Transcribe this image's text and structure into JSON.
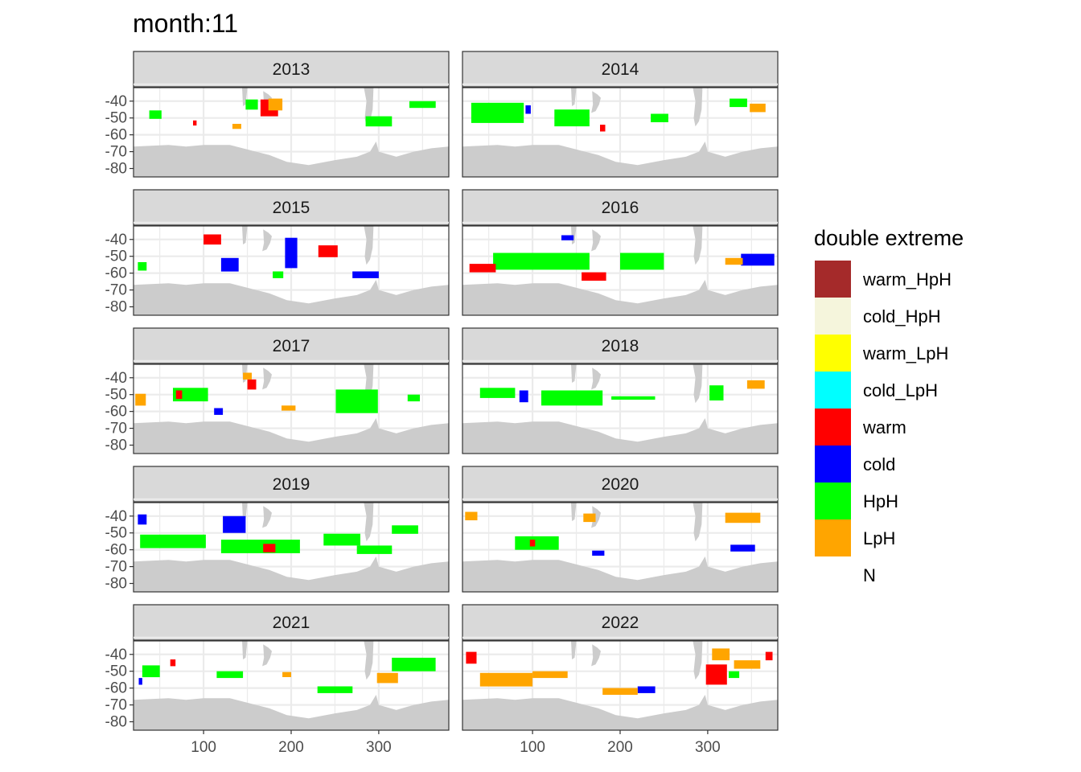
{
  "chart_data": {
    "type": "heatmap",
    "title": "month:11",
    "xlabel": "",
    "ylabel": "",
    "x_ticks": [
      100,
      200,
      300
    ],
    "y_ticks": [
      -40,
      -50,
      -60,
      -70,
      -80
    ],
    "xlim": [
      20,
      380
    ],
    "ylim": [
      -85,
      -32
    ],
    "facets": [
      {
        "label": "2013",
        "patches": [
          {
            "cat": "warm",
            "lon": 175,
            "lat": -44,
            "w": 20,
            "h": 10
          },
          {
            "cat": "LpH",
            "lon": 182,
            "lat": -42,
            "w": 16,
            "h": 7
          },
          {
            "cat": "HpH",
            "lon": 155,
            "lat": -42,
            "w": 14,
            "h": 6
          },
          {
            "cat": "HpH",
            "lon": 300,
            "lat": -52,
            "w": 30,
            "h": 6
          },
          {
            "cat": "HpH",
            "lon": 350,
            "lat": -42,
            "w": 30,
            "h": 4
          },
          {
            "cat": "HpH",
            "lon": 45,
            "lat": -48,
            "w": 14,
            "h": 5
          },
          {
            "cat": "LpH",
            "lon": 138,
            "lat": -55,
            "w": 10,
            "h": 3
          },
          {
            "cat": "warm",
            "lon": 90,
            "lat": -53,
            "w": 4,
            "h": 3
          }
        ]
      },
      {
        "label": "2014",
        "patches": [
          {
            "cat": "HpH",
            "lon": 60,
            "lat": -47,
            "w": 60,
            "h": 12
          },
          {
            "cat": "HpH",
            "lon": 145,
            "lat": -50,
            "w": 40,
            "h": 10
          },
          {
            "cat": "HpH",
            "lon": 245,
            "lat": -50,
            "w": 20,
            "h": 5
          },
          {
            "cat": "HpH",
            "lon": 335,
            "lat": -41,
            "w": 20,
            "h": 5
          },
          {
            "cat": "LpH",
            "lon": 357,
            "lat": -44,
            "w": 18,
            "h": 5
          },
          {
            "cat": "warm",
            "lon": 180,
            "lat": -56,
            "w": 6,
            "h": 4
          },
          {
            "cat": "cold",
            "lon": 95,
            "lat": -45,
            "w": 6,
            "h": 5
          }
        ]
      },
      {
        "label": "2015",
        "patches": [
          {
            "cat": "warm",
            "lon": 110,
            "lat": -40,
            "w": 20,
            "h": 6
          },
          {
            "cat": "cold",
            "lon": 200,
            "lat": -48,
            "w": 14,
            "h": 18
          },
          {
            "cat": "warm",
            "lon": 242,
            "lat": -47,
            "w": 22,
            "h": 7
          },
          {
            "cat": "cold",
            "lon": 285,
            "lat": -61,
            "w": 30,
            "h": 4
          },
          {
            "cat": "cold",
            "lon": 130,
            "lat": -55,
            "w": 20,
            "h": 8
          },
          {
            "cat": "HpH",
            "lon": 30,
            "lat": -56,
            "w": 10,
            "h": 5
          },
          {
            "cat": "HpH",
            "lon": 185,
            "lat": -61,
            "w": 12,
            "h": 4
          }
        ]
      },
      {
        "label": "2016",
        "patches": [
          {
            "cat": "HpH",
            "lon": 110,
            "lat": -53,
            "w": 110,
            "h": 10
          },
          {
            "cat": "HpH",
            "lon": 225,
            "lat": -53,
            "w": 50,
            "h": 10
          },
          {
            "cat": "warm",
            "lon": 43,
            "lat": -57,
            "w": 30,
            "h": 5
          },
          {
            "cat": "warm",
            "lon": 170,
            "lat": -62,
            "w": 28,
            "h": 5
          },
          {
            "cat": "cold",
            "lon": 357,
            "lat": -52,
            "w": 38,
            "h": 7
          },
          {
            "cat": "LpH",
            "lon": 330,
            "lat": -53,
            "w": 20,
            "h": 4
          },
          {
            "cat": "cold",
            "lon": 140,
            "lat": -39,
            "w": 14,
            "h": 3
          }
        ]
      },
      {
        "label": "2017",
        "patches": [
          {
            "cat": "HpH",
            "lon": 275,
            "lat": -54,
            "w": 48,
            "h": 14
          },
          {
            "cat": "LpH",
            "lon": 28,
            "lat": -53,
            "w": 12,
            "h": 7
          },
          {
            "cat": "HpH",
            "lon": 85,
            "lat": -50,
            "w": 40,
            "h": 8
          },
          {
            "cat": "warm",
            "lon": 72,
            "lat": -50,
            "w": 7,
            "h": 5
          },
          {
            "cat": "warm",
            "lon": 155,
            "lat": -44,
            "w": 10,
            "h": 6
          },
          {
            "cat": "cold",
            "lon": 117,
            "lat": -60,
            "w": 10,
            "h": 4
          },
          {
            "cat": "LpH",
            "lon": 150,
            "lat": -39,
            "w": 10,
            "h": 4
          },
          {
            "cat": "HpH",
            "lon": 340,
            "lat": -52,
            "w": 14,
            "h": 4
          },
          {
            "cat": "LpH",
            "lon": 197,
            "lat": -58,
            "w": 16,
            "h": 3
          }
        ]
      },
      {
        "label": "2018",
        "patches": [
          {
            "cat": "HpH",
            "lon": 145,
            "lat": -52,
            "w": 70,
            "h": 9
          },
          {
            "cat": "HpH",
            "lon": 60,
            "lat": -49,
            "w": 40,
            "h": 6
          },
          {
            "cat": "cold",
            "lon": 90,
            "lat": -51,
            "w": 10,
            "h": 7
          },
          {
            "cat": "HpH",
            "lon": 310,
            "lat": -49,
            "w": 16,
            "h": 9
          },
          {
            "cat": "LpH",
            "lon": 355,
            "lat": -44,
            "w": 20,
            "h": 5
          },
          {
            "cat": "HpH",
            "lon": 215,
            "lat": -52,
            "w": 50,
            "h": 2
          }
        ]
      },
      {
        "label": "2019",
        "patches": [
          {
            "cat": "HpH",
            "lon": 65,
            "lat": -55,
            "w": 75,
            "h": 8
          },
          {
            "cat": "HpH",
            "lon": 165,
            "lat": -58,
            "w": 90,
            "h": 8
          },
          {
            "cat": "warm",
            "lon": 175,
            "lat": -59,
            "w": 14,
            "h": 5
          },
          {
            "cat": "cold",
            "lon": 135,
            "lat": -45,
            "w": 26,
            "h": 10
          },
          {
            "cat": "HpH",
            "lon": 258,
            "lat": -54,
            "w": 42,
            "h": 7
          },
          {
            "cat": "HpH",
            "lon": 295,
            "lat": -60,
            "w": 40,
            "h": 5
          },
          {
            "cat": "cold",
            "lon": 30,
            "lat": -42,
            "w": 10,
            "h": 6
          },
          {
            "cat": "HpH",
            "lon": 330,
            "lat": -48,
            "w": 30,
            "h": 5
          }
        ]
      },
      {
        "label": "2020",
        "patches": [
          {
            "cat": "HpH",
            "lon": 105,
            "lat": -56,
            "w": 50,
            "h": 8
          },
          {
            "cat": "LpH",
            "lon": 340,
            "lat": -41,
            "w": 40,
            "h": 6
          },
          {
            "cat": "cold",
            "lon": 340,
            "lat": -59,
            "w": 28,
            "h": 4
          },
          {
            "cat": "LpH",
            "lon": 30,
            "lat": -40,
            "w": 14,
            "h": 5
          },
          {
            "cat": "LpH",
            "lon": 165,
            "lat": -41,
            "w": 14,
            "h": 5
          },
          {
            "cat": "warm",
            "lon": 100,
            "lat": -56,
            "w": 6,
            "h": 4
          },
          {
            "cat": "cold",
            "lon": 175,
            "lat": -62,
            "w": 14,
            "h": 3
          }
        ]
      },
      {
        "label": "2021",
        "patches": [
          {
            "cat": "HpH",
            "lon": 340,
            "lat": -46,
            "w": 50,
            "h": 8
          },
          {
            "cat": "LpH",
            "lon": 310,
            "lat": -54,
            "w": 24,
            "h": 6
          },
          {
            "cat": "HpH",
            "lon": 40,
            "lat": -50,
            "w": 20,
            "h": 7
          },
          {
            "cat": "warm",
            "lon": 65,
            "lat": -45,
            "w": 6,
            "h": 4
          },
          {
            "cat": "HpH",
            "lon": 250,
            "lat": -61,
            "w": 40,
            "h": 4
          },
          {
            "cat": "HpH",
            "lon": 130,
            "lat": -52,
            "w": 30,
            "h": 4
          },
          {
            "cat": "cold",
            "lon": 28,
            "lat": -56,
            "w": 4,
            "h": 4
          },
          {
            "cat": "LpH",
            "lon": 195,
            "lat": -52,
            "w": 10,
            "h": 3
          }
        ]
      },
      {
        "label": "2022",
        "patches": [
          {
            "cat": "LpH",
            "lon": 70,
            "lat": -55,
            "w": 60,
            "h": 8
          },
          {
            "cat": "LpH",
            "lon": 120,
            "lat": -52,
            "w": 40,
            "h": 4
          },
          {
            "cat": "warm",
            "lon": 310,
            "lat": -52,
            "w": 24,
            "h": 12
          },
          {
            "cat": "LpH",
            "lon": 315,
            "lat": -40,
            "w": 20,
            "h": 7
          },
          {
            "cat": "cold",
            "lon": 230,
            "lat": -61,
            "w": 20,
            "h": 4
          },
          {
            "cat": "LpH",
            "lon": 200,
            "lat": -62,
            "w": 40,
            "h": 4
          },
          {
            "cat": "warm",
            "lon": 30,
            "lat": -42,
            "w": 12,
            "h": 7
          },
          {
            "cat": "LpH",
            "lon": 345,
            "lat": -46,
            "w": 30,
            "h": 5
          },
          {
            "cat": "HpH",
            "lon": 330,
            "lat": -52,
            "w": 12,
            "h": 4
          },
          {
            "cat": "warm",
            "lon": 370,
            "lat": -41,
            "w": 8,
            "h": 5
          }
        ]
      }
    ],
    "legend": {
      "title": "double extreme",
      "position": "right",
      "entries": [
        {
          "key": "warm_HpH",
          "label": "warm_HpH",
          "color": "#A52A2A"
        },
        {
          "key": "cold_HpH",
          "label": "cold_HpH",
          "color": "#F5F5DC"
        },
        {
          "key": "warm_LpH",
          "label": "warm_LpH",
          "color": "#FFFF00"
        },
        {
          "key": "cold_LpH",
          "label": "cold_LpH",
          "color": "#00FFFF"
        },
        {
          "key": "warm",
          "label": "warm",
          "color": "#FF0000"
        },
        {
          "key": "cold",
          "label": "cold",
          "color": "#0000FF"
        },
        {
          "key": "HpH",
          "label": "HpH",
          "color": "#00FF00"
        },
        {
          "key": "LpH",
          "label": "LpH",
          "color": "#FFA500"
        },
        {
          "key": "N",
          "label": "N",
          "color": "#FFFFFF"
        }
      ]
    },
    "colors": {
      "land": "#CCCCCC",
      "strip": "#D9D9D9",
      "panel_border": "#333333",
      "grid": "#EBEBEB"
    }
  }
}
